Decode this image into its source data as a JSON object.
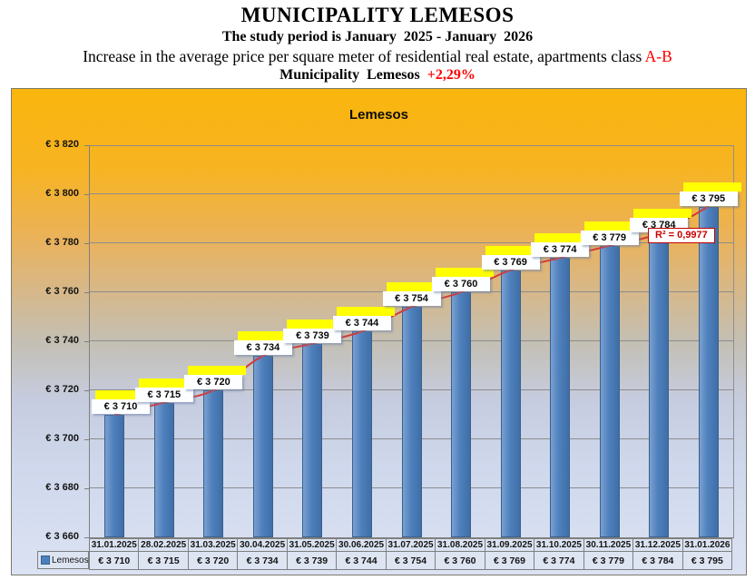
{
  "header": {
    "title": "MUNICIPALITY LEMESOS",
    "subtitle": "The study period is January  2025 - January  2026",
    "description": "Increase in the average price per square meter of residential real estate, apartments class ",
    "description_highlight": "A-B",
    "summary": "Municipality  Lemesos  ",
    "summary_highlight": "+2,29%"
  },
  "chart_data": {
    "type": "bar",
    "title": "Lemesos",
    "legend_entry": "Lemesos",
    "legend_position": "bottom-left",
    "grid": true,
    "categories": [
      "31.01.2025",
      "28.02.2025",
      "31.03.2025",
      "30.04.2025",
      "31.05.2025",
      "30.06.2025",
      "31.07.2025",
      "31.08.2025",
      "31.09.2025",
      "31.10.2025",
      "30.11.2025",
      "31.12.2025",
      "31.01.2026"
    ],
    "values": [
      3710,
      3715,
      3720,
      3734,
      3739,
      3744,
      3754,
      3760,
      3769,
      3774,
      3779,
      3784,
      3795
    ],
    "value_labels": [
      "€ 3 710",
      "€ 3 715",
      "€ 3 720",
      "€ 3 734",
      "€ 3 739",
      "€ 3 744",
      "€ 3 754",
      "€ 3 760",
      "€ 3 769",
      "€ 3 774",
      "€ 3 779",
      "€ 3 784",
      "€ 3 795"
    ],
    "ylim": [
      3660,
      3820
    ],
    "ytick_step": 20,
    "ytick_labels": [
      "€ 3 660",
      "€ 3 680",
      "€ 3 700",
      "€ 3 720",
      "€ 3 740",
      "€ 3 760",
      "€ 3 780",
      "€ 3 800",
      "€ 3 820"
    ],
    "trendline": {
      "type": "polynomial",
      "r2_label": "R² = 0,9977",
      "color": "#D23B3B"
    },
    "colors": {
      "bar": "#4C7FBE",
      "bar_border": "#38618F",
      "label_highlight": "#FFFF00",
      "accent_red": "#FF0000",
      "plot_bg_top": "#FAB50D",
      "plot_bg_bottom": "#DBE2F3"
    }
  }
}
